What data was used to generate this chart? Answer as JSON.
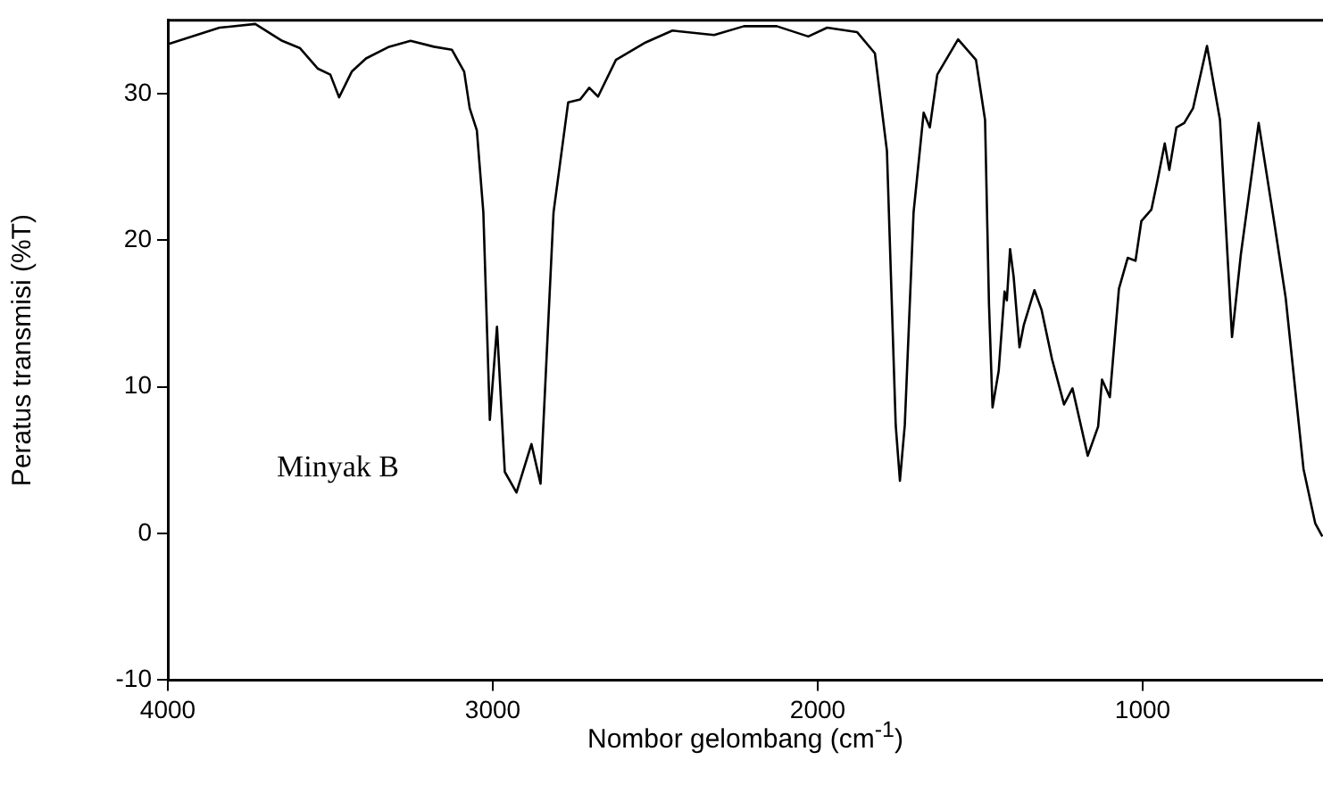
{
  "chart_data": {
    "type": "line",
    "xlabel": "Nombor gelombang (cm$^{-1}$)",
    "ylabel": "Peratus transmisi (%T)",
    "xlim": [
      4000,
      445
    ],
    "xticks": [
      4000,
      3000,
      2000,
      1000
    ],
    "ylim": [
      -10,
      35
    ],
    "yticks": [
      -10,
      0,
      10,
      20,
      30
    ],
    "grid": false,
    "legend": false,
    "marker": "none",
    "line_style": "solid",
    "annotations": [
      "Minyak B"
    ],
    "series": [
      {
        "color": "#000000",
        "x": [
          3995,
          3841,
          3731,
          3648,
          3593,
          3538,
          3500,
          3473,
          3434,
          3390,
          3319,
          3253,
          3181,
          3126,
          3088,
          3071,
          3049,
          3029,
          3009,
          2987,
          2963,
          2927,
          2881,
          2853,
          2813,
          2768,
          2731,
          2703,
          2676,
          2621,
          2529,
          2447,
          2319,
          2227,
          2126,
          2029,
          1971,
          1879,
          1824,
          1787,
          1760,
          1747,
          1732,
          1705,
          1674,
          1655,
          1632,
          1568,
          1513,
          1485,
          1473,
          1462,
          1443,
          1425,
          1418,
          1408,
          1397,
          1379,
          1366,
          1333,
          1311,
          1279,
          1242,
          1216,
          1169,
          1137,
          1125,
          1101,
          1073,
          1046,
          1022,
          1004,
          973,
          955,
          932,
          918,
          896,
          872,
          845,
          802,
          762,
          725,
          698,
          643,
          597,
          560,
          505,
          469,
          447
        ],
        "values": [
          33.4,
          34.5,
          34.75,
          33.6,
          33.1,
          31.7,
          31.3,
          29.75,
          31.5,
          32.4,
          33.2,
          33.6,
          33.2,
          33.0,
          31.5,
          29.0,
          27.5,
          21.9,
          7.75,
          14.1,
          4.2,
          2.8,
          6.1,
          3.4,
          21.9,
          29.4,
          29.6,
          30.4,
          29.8,
          32.3,
          33.5,
          34.3,
          34.0,
          34.6,
          34.6,
          33.9,
          34.5,
          34.2,
          32.75,
          26.1,
          7.4,
          3.6,
          7.4,
          21.9,
          28.7,
          27.7,
          31.3,
          33.7,
          32.3,
          28.2,
          15.7,
          8.6,
          11.1,
          16.5,
          15.9,
          19.4,
          17.5,
          12.7,
          14.2,
          16.6,
          15.25,
          11.9,
          8.8,
          9.9,
          5.3,
          7.3,
          10.5,
          9.3,
          16.7,
          18.8,
          18.6,
          21.3,
          22.1,
          24.0,
          26.6,
          24.8,
          27.7,
          28.0,
          29.0,
          33.25,
          28.2,
          13.4,
          19.0,
          28.0,
          21.5,
          16.1,
          4.4,
          0.7,
          -0.2
        ]
      }
    ]
  }
}
